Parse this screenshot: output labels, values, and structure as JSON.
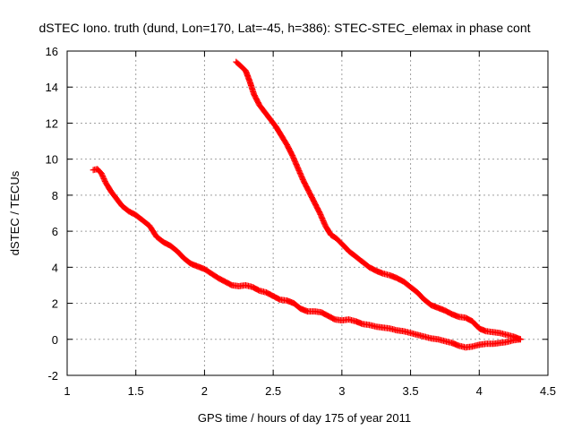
{
  "chart_data": {
    "type": "scatter",
    "title": "dSTEC Iono. truth (dund, Lon=170, Lat=-45, h=386): STEC-STEC_elemax in phase cont",
    "xlabel": "GPS time / hours of day 175 of year 2011",
    "ylabel": "dSTEC  / TECUs",
    "xlim": [
      1,
      4.5
    ],
    "ylim": [
      -2,
      16
    ],
    "xticks": [
      1,
      1.5,
      2,
      2.5,
      3,
      3.5,
      4,
      4.5
    ],
    "yticks": [
      -2,
      0,
      2,
      4,
      6,
      8,
      10,
      12,
      14,
      16
    ],
    "xtick_labels": [
      "1",
      "1.5",
      "2",
      "2.5",
      "3",
      "3.5",
      "4",
      "4.5"
    ],
    "ytick_labels": [
      "-2",
      "0",
      "2",
      "4",
      "6",
      "8",
      "10",
      "12",
      "14",
      "16"
    ],
    "grid": true,
    "marker": "plus",
    "series": [
      {
        "color": "#ff0000",
        "x": [
          1.19,
          1.22,
          1.25,
          1.28,
          1.32,
          1.36,
          1.4,
          1.45,
          1.5,
          1.55,
          1.6,
          1.65,
          1.7,
          1.75,
          1.8,
          1.85,
          1.9,
          1.95,
          2.0,
          2.05,
          2.1,
          2.15,
          2.2,
          2.25,
          2.3,
          2.35,
          2.4,
          2.45,
          2.5,
          2.55,
          2.6,
          2.65,
          2.7,
          2.75,
          2.8,
          2.85,
          2.9,
          2.95,
          3.0,
          3.05,
          3.1,
          3.15,
          3.2,
          3.25,
          3.3,
          3.35,
          3.4,
          3.45,
          3.5,
          3.55,
          3.6,
          3.65,
          3.7,
          3.75,
          3.8,
          3.85,
          3.9,
          3.95,
          4.0,
          4.05,
          4.1,
          4.15,
          4.2,
          4.25,
          4.3
        ],
        "y": [
          9.4,
          9.45,
          9.2,
          8.7,
          8.2,
          7.8,
          7.4,
          7.1,
          6.9,
          6.6,
          6.3,
          5.7,
          5.4,
          5.2,
          4.9,
          4.5,
          4.2,
          4.05,
          3.9,
          3.65,
          3.4,
          3.2,
          3.0,
          2.95,
          3.0,
          2.9,
          2.7,
          2.6,
          2.4,
          2.2,
          2.15,
          2.0,
          1.7,
          1.55,
          1.55,
          1.5,
          1.3,
          1.1,
          1.05,
          1.1,
          1.0,
          0.85,
          0.8,
          0.7,
          0.65,
          0.6,
          0.5,
          0.45,
          0.35,
          0.25,
          0.15,
          0.05,
          0.0,
          -0.1,
          -0.2,
          -0.35,
          -0.45,
          -0.4,
          -0.3,
          -0.25,
          -0.25,
          -0.2,
          -0.15,
          -0.05,
          0.0
        ]
      },
      {
        "color": "#ff0000",
        "x": [
          2.23,
          2.26,
          2.3,
          2.33,
          2.36,
          2.4,
          2.44,
          2.48,
          2.52,
          2.56,
          2.6,
          2.64,
          2.68,
          2.72,
          2.76,
          2.8,
          2.84,
          2.88,
          2.92,
          2.96,
          3.0,
          3.05,
          3.1,
          3.15,
          3.2,
          3.25,
          3.3,
          3.35,
          3.4,
          3.45,
          3.5,
          3.55,
          3.6,
          3.65,
          3.7,
          3.75,
          3.8,
          3.85,
          3.9,
          3.95,
          4.0,
          4.05,
          4.1,
          4.15,
          4.2,
          4.25,
          4.3
        ],
        "y": [
          15.4,
          15.2,
          14.9,
          14.3,
          13.6,
          13.0,
          12.6,
          12.2,
          11.8,
          11.3,
          10.8,
          10.2,
          9.5,
          8.8,
          8.2,
          7.6,
          7.0,
          6.3,
          5.8,
          5.6,
          5.3,
          4.9,
          4.6,
          4.3,
          4.0,
          3.8,
          3.65,
          3.55,
          3.4,
          3.2,
          2.9,
          2.6,
          2.2,
          1.9,
          1.75,
          1.6,
          1.4,
          1.25,
          1.2,
          1.0,
          0.6,
          0.45,
          0.4,
          0.35,
          0.25,
          0.15,
          0.0
        ]
      }
    ]
  }
}
